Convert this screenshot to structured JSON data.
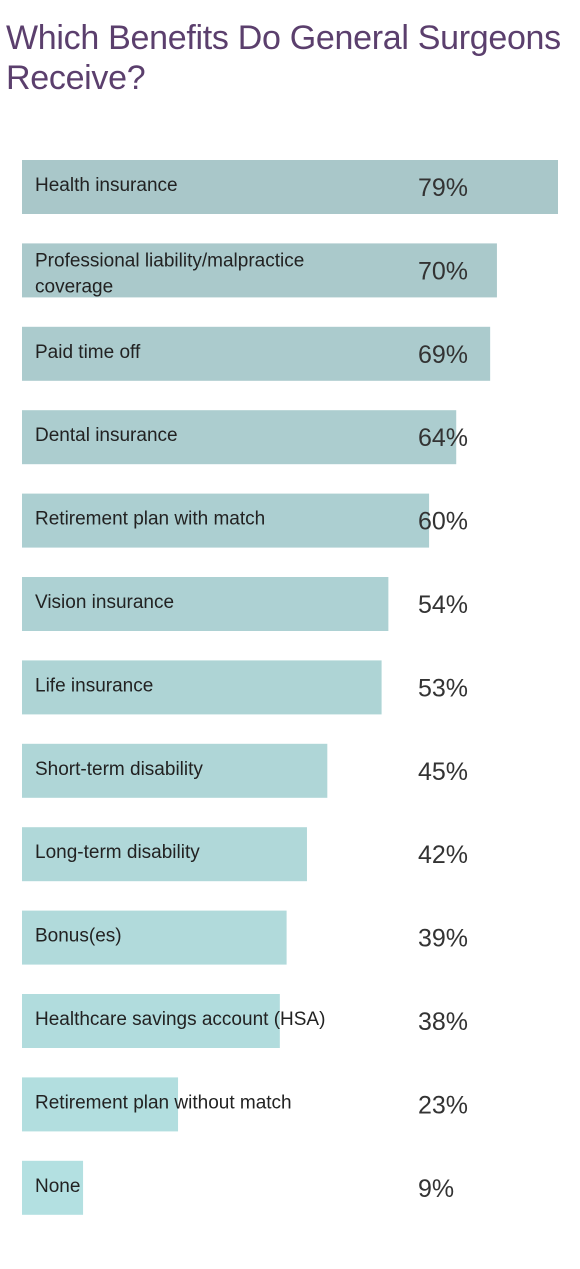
{
  "chart_data": {
    "type": "bar",
    "orientation": "horizontal",
    "title": "Which Benefits Do General Surgeons Receive?",
    "xlim": [
      0,
      79
    ],
    "grid": false,
    "categories": [
      "Health insurance",
      "Professional liability/malpractice coverage",
      "Paid time off",
      "Dental insurance",
      "Retirement plan with match",
      "Vision insurance",
      "Life insurance",
      "Short-term disability",
      "Long-term disability",
      "Bonus(es)",
      "Healthcare savings account (HSA)",
      "Retirement plan without match",
      "None"
    ],
    "values": [
      79,
      70,
      69,
      64,
      60,
      54,
      53,
      45,
      42,
      39,
      38,
      23,
      9
    ],
    "value_labels": [
      "79%",
      "70%",
      "69%",
      "64%",
      "60%",
      "54%",
      "53%",
      "45%",
      "42%",
      "39%",
      "38%",
      "23%",
      "9%"
    ],
    "colors": {
      "title": "#5b3f6d",
      "bar_top": "#a9c7c9",
      "bar_bottom": "#b3e0e1",
      "label": "#222222",
      "value": "#333333"
    }
  }
}
